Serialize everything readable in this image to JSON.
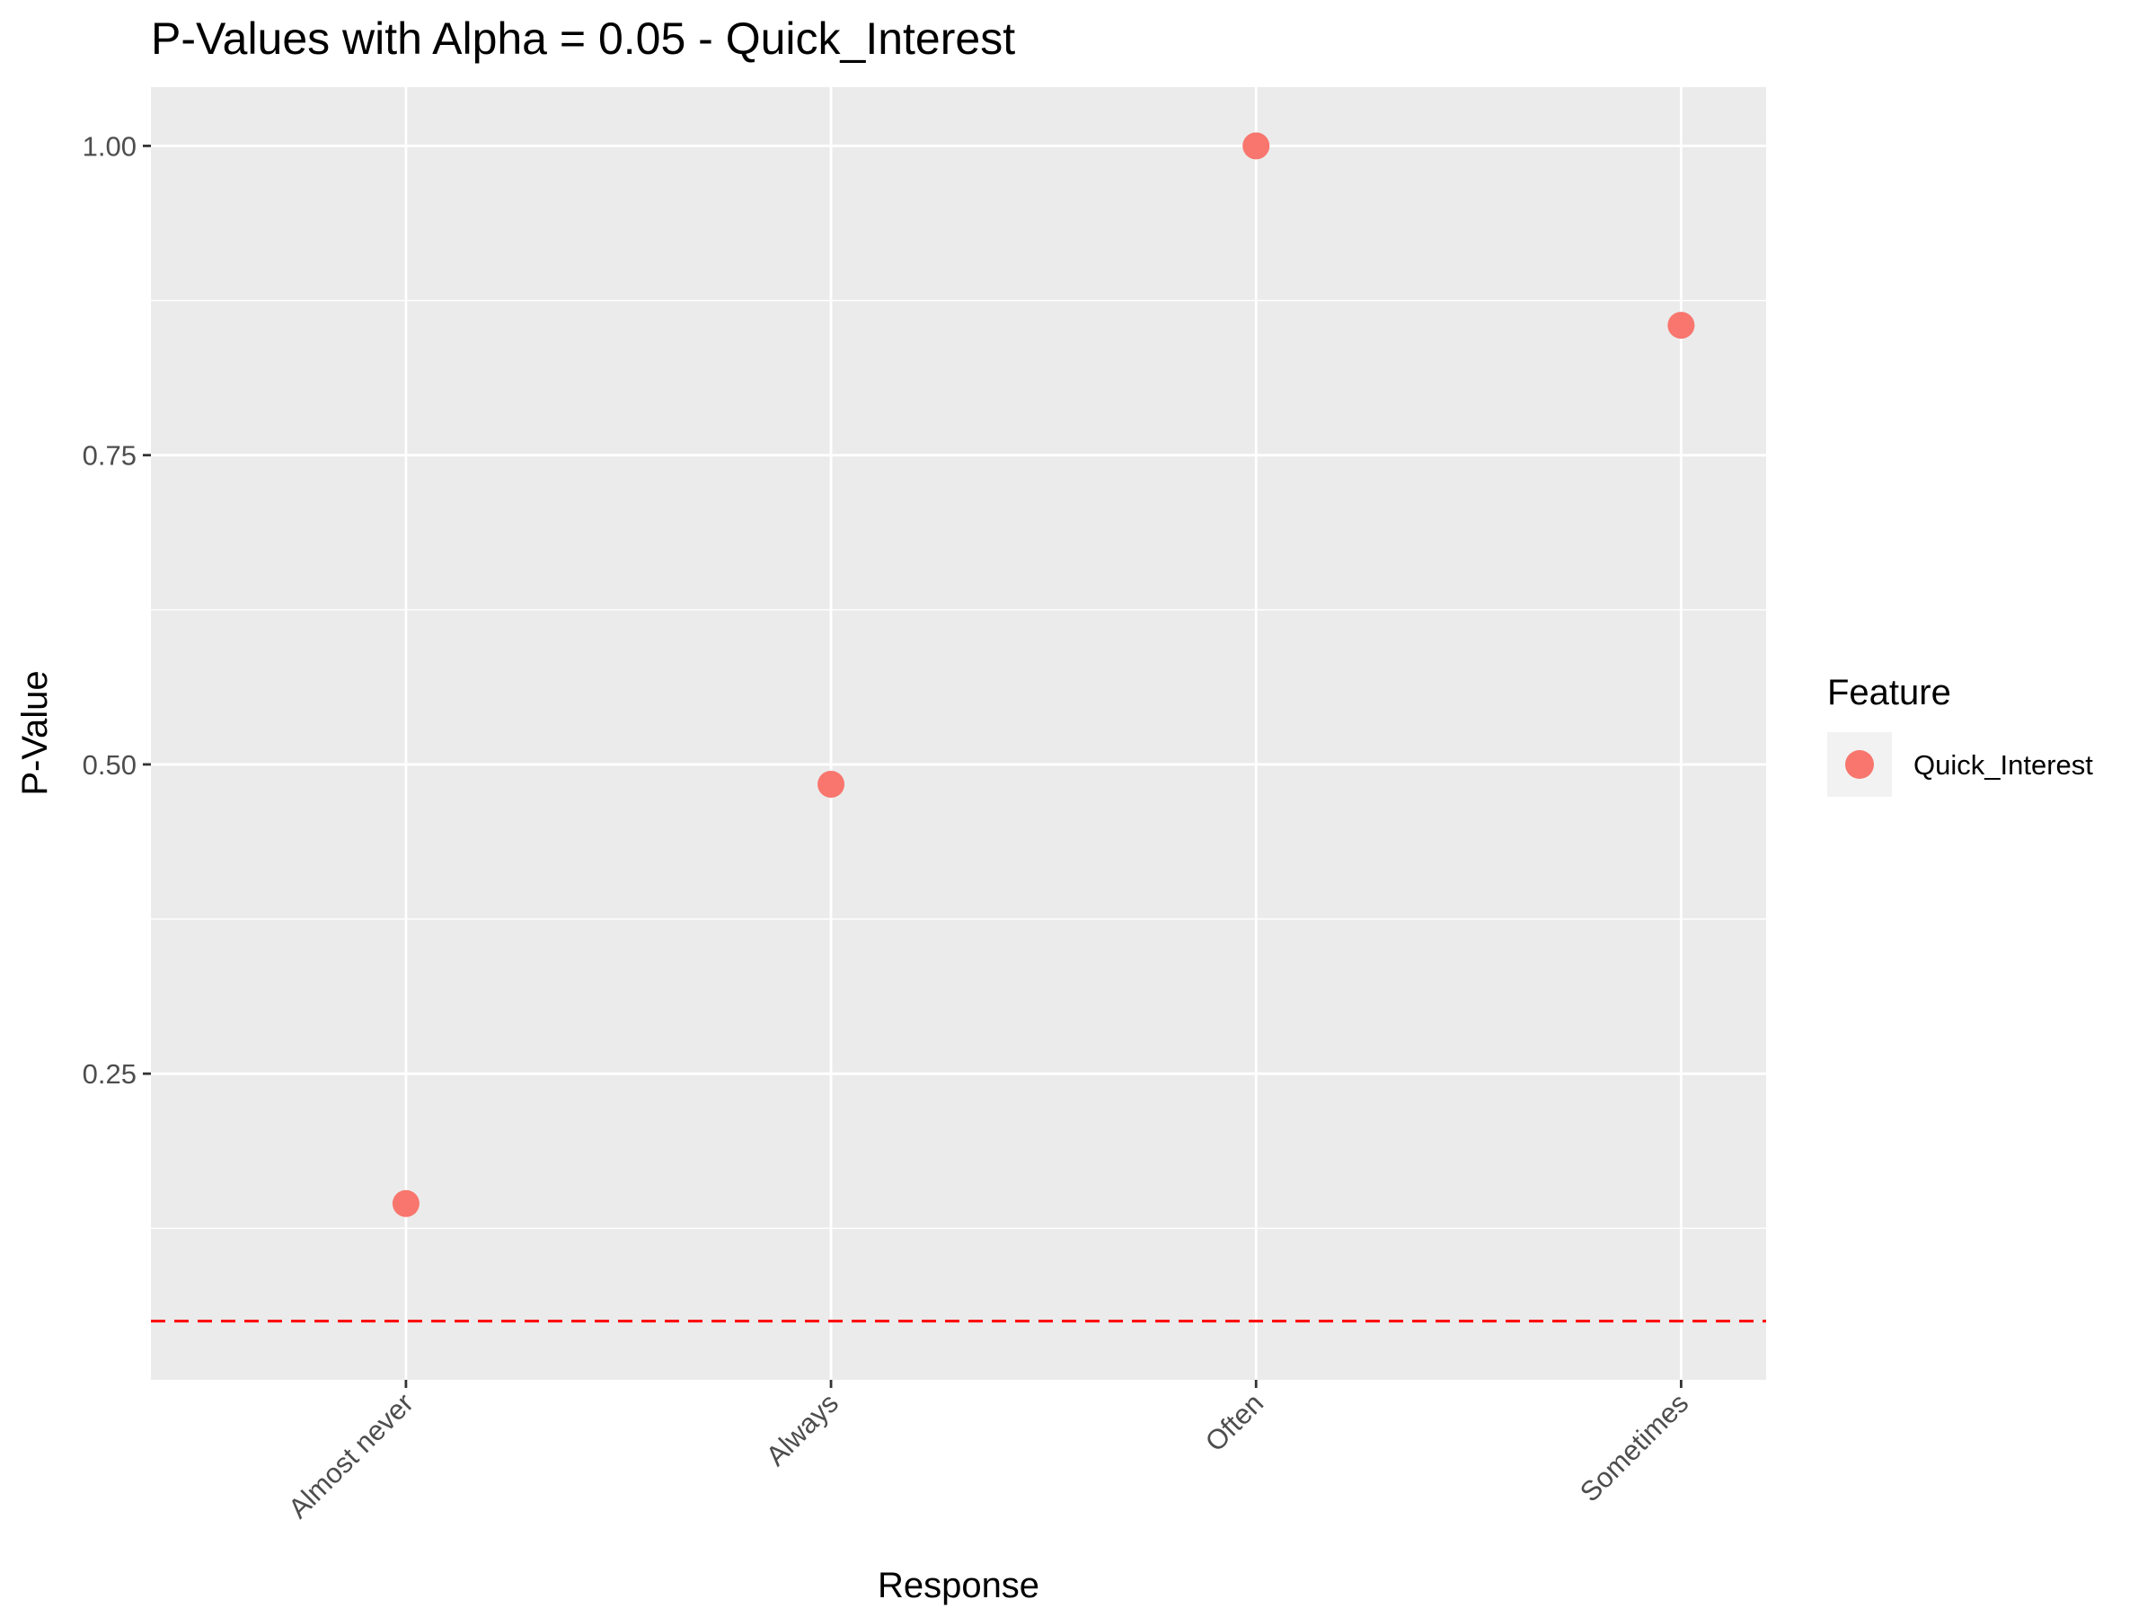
{
  "chart_data": {
    "type": "scatter",
    "title": "P-Values with Alpha = 0.05 - Quick_Interest",
    "xlabel": "Response",
    "ylabel": "P-Value",
    "categories": [
      "Almost never",
      "Always",
      "Often",
      "Sometimes"
    ],
    "series": [
      {
        "name": "Quick_Interest",
        "color": "#F8766D",
        "values": [
          0.145,
          0.484,
          1.0,
          0.855
        ]
      }
    ],
    "ylim": [
      0.0025,
      1.0475
    ],
    "yticks": [
      0.25,
      0.5,
      0.75,
      1.0
    ],
    "ytick_labels": [
      "0.25",
      "0.50",
      "0.75",
      "1.00"
    ],
    "reference_line": {
      "y": 0.05,
      "style": "dashed",
      "color": "#FF0000"
    },
    "legend": {
      "title": "Feature",
      "position": "right"
    },
    "grid": true,
    "panel_background": "#EBEBEB",
    "grid_color": "#FFFFFF"
  }
}
